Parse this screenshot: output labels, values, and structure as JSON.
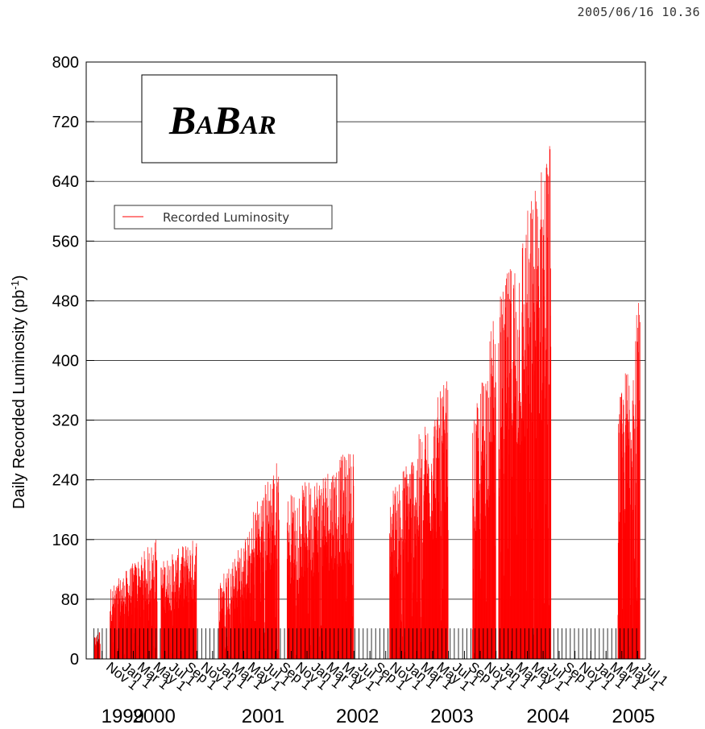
{
  "header": {
    "timestamp": "2005/06/16  10.36"
  },
  "logo": {
    "parts": [
      "B",
      "A",
      "B",
      "A",
      "R"
    ]
  },
  "chart_data": {
    "type": "bar",
    "title": "",
    "xlabel": "",
    "ylabel": "Daily Recorded Luminosity (pb",
    "ylabel_sup": "-1",
    "ylabel_close": ")",
    "ylim": [
      0,
      800
    ],
    "yticks": [
      "0",
      "80",
      "160",
      "240",
      "320",
      "400",
      "480",
      "560",
      "640",
      "720",
      "800"
    ],
    "grid": "horizontal",
    "legend": {
      "placement": "top-left",
      "entries": [
        "Recorded Luminosity"
      ]
    },
    "xlim": [
      "1999-09-01",
      "2005-07-31"
    ],
    "xticks": [
      {
        "date": "1999-11-01",
        "label": "Nov 1"
      },
      {
        "date": "2000-01-01",
        "label": "Jan 1"
      },
      {
        "date": "2000-03-01",
        "label": "Mar 1"
      },
      {
        "date": "2000-05-01",
        "label": "May 1"
      },
      {
        "date": "2000-07-01",
        "label": "Jul 1"
      },
      {
        "date": "2000-09-01",
        "label": "Sep 1"
      },
      {
        "date": "2000-11-01",
        "label": "Nov 1"
      },
      {
        "date": "2001-01-01",
        "label": "Jan 1"
      },
      {
        "date": "2001-03-01",
        "label": "Mar 1"
      },
      {
        "date": "2001-05-01",
        "label": "May 1"
      },
      {
        "date": "2001-07-01",
        "label": "Jul 1"
      },
      {
        "date": "2001-09-01",
        "label": "Sep 1"
      },
      {
        "date": "2001-11-01",
        "label": "Nov 1"
      },
      {
        "date": "2002-01-01",
        "label": "Jan 1"
      },
      {
        "date": "2002-03-01",
        "label": "Mar 1"
      },
      {
        "date": "2002-05-01",
        "label": "May 1"
      },
      {
        "date": "2002-07-01",
        "label": "Jul 1"
      },
      {
        "date": "2002-09-01",
        "label": "Sep 1"
      },
      {
        "date": "2002-11-01",
        "label": "Nov 1"
      },
      {
        "date": "2003-01-01",
        "label": "Jan 1"
      },
      {
        "date": "2003-03-01",
        "label": "Mar 1"
      },
      {
        "date": "2003-05-01",
        "label": "May 1"
      },
      {
        "date": "2003-07-01",
        "label": "Jul 1"
      },
      {
        "date": "2003-09-01",
        "label": "Sep 1"
      },
      {
        "date": "2003-11-01",
        "label": "Nov 1"
      },
      {
        "date": "2004-01-01",
        "label": "Jan 1"
      },
      {
        "date": "2004-03-01",
        "label": "Mar 1"
      },
      {
        "date": "2004-05-01",
        "label": "May 1"
      },
      {
        "date": "2004-07-01",
        "label": "Jul 1"
      },
      {
        "date": "2004-09-01",
        "label": "Sep 1"
      },
      {
        "date": "2004-11-01",
        "label": "Nov 1"
      },
      {
        "date": "2005-01-01",
        "label": "Jan 1"
      },
      {
        "date": "2005-03-01",
        "label": "Mar 1"
      },
      {
        "date": "2005-05-01",
        "label": "May 1"
      },
      {
        "date": "2005-07-01",
        "label": "Jul 1"
      }
    ],
    "year_labels": [
      {
        "date": "2000-01-20",
        "label": "1999"
      },
      {
        "date": "2000-05-20",
        "label": "2000"
      },
      {
        "date": "2001-07-15",
        "label": "2001"
      },
      {
        "date": "2002-07-15",
        "label": "2002"
      },
      {
        "date": "2003-07-15",
        "label": "2003"
      },
      {
        "date": "2004-07-20",
        "label": "2004"
      },
      {
        "date": "2005-06-15",
        "label": "2005"
      }
    ],
    "series": [
      {
        "name": "Recorded Luminosity",
        "color": "#ff0000",
        "runs": [
          {
            "start": "1999-10-01",
            "end": "1999-10-25",
            "low": 15,
            "high": 40
          },
          {
            "start": "1999-12-01",
            "end": "2000-06-01",
            "low": 10,
            "high": 165
          },
          {
            "start": "2000-06-15",
            "end": "2000-10-31",
            "low": 90,
            "high": 165
          },
          {
            "start": "2001-01-25",
            "end": "2001-06-05",
            "low": 20,
            "high": 180
          },
          {
            "start": "2001-06-05",
            "end": "2001-09-15",
            "low": 120,
            "high": 275
          },
          {
            "start": "2001-10-15",
            "end": "2002-06-30",
            "low": 140,
            "high": 285
          },
          {
            "start": "2002-11-15",
            "end": "2003-06-30",
            "low": 30,
            "high": 380
          },
          {
            "start": "2003-10-01",
            "end": "2003-12-31",
            "low": 100,
            "high": 480
          },
          {
            "start": "2004-01-10",
            "end": "2004-07-31",
            "low": 200,
            "high": 710
          },
          {
            "start": "2005-04-15",
            "end": "2005-07-10",
            "low": 150,
            "high": 490
          }
        ]
      }
    ]
  }
}
